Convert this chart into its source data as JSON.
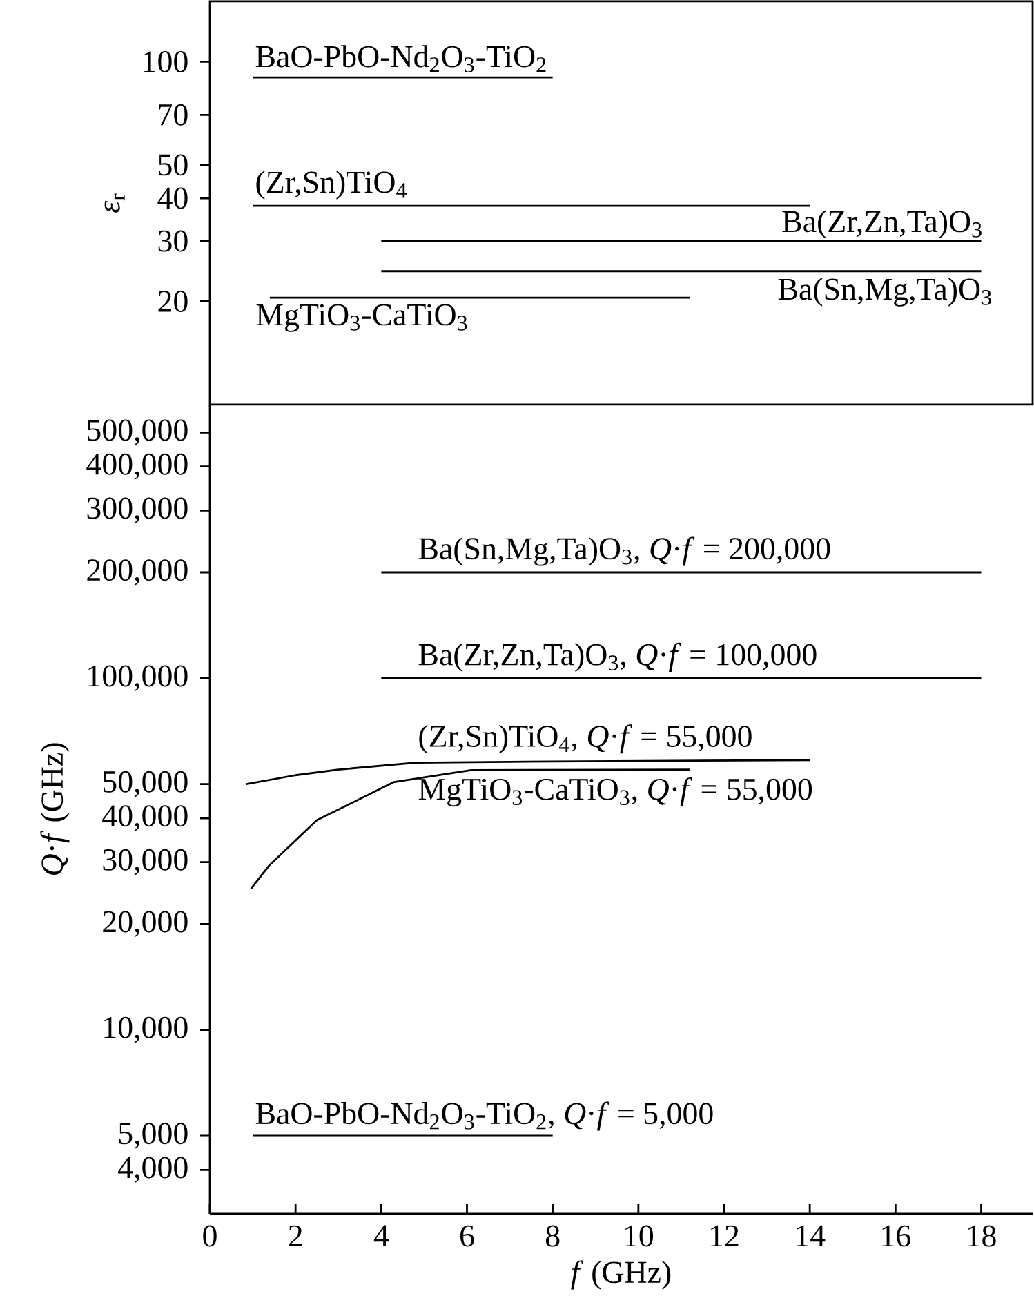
{
  "chart_data": [
    {
      "type": "line",
      "ylabel": "*ε*$_{r}$",
      "log": "y",
      "xlim": [
        0,
        19.2
      ],
      "ylim": [
        10,
        150
      ],
      "yticks": [
        20,
        30,
        40,
        50,
        70,
        100
      ],
      "tick_labels": "y",
      "series": [
        {
          "color": "#000000",
          "x": [
            1,
            8
          ],
          "values": [
            90,
            90
          ]
        },
        {
          "color": "#000000",
          "x": [
            1,
            14
          ],
          "values": [
            38,
            38
          ]
        },
        {
          "color": "#000000",
          "x": [
            4,
            18
          ],
          "values": [
            30,
            30
          ]
        },
        {
          "color": "#000000",
          "x": [
            4,
            18
          ],
          "values": [
            24.5,
            24.5
          ]
        },
        {
          "color": "#000000",
          "x": [
            1.4,
            11.2
          ],
          "values": [
            20.5,
            20.5
          ]
        }
      ],
      "annotations": [
        {
          "text": "BaO-PbO-Nd$_{2}$O$_{3}$-TiO$_{2}$",
          "x": 1,
          "y": 90
        },
        {
          "text": "(Zr,Sn)TiO$_{4}$",
          "x": 1,
          "y": 38
        },
        {
          "text": "Ba(Zr,Zn,Ta)O$_{3}$",
          "x": 18,
          "y": 30
        },
        {
          "text": "Ba(Sn,Mg,Ta)O$_{3}$",
          "x": 18,
          "y": 24.5
        },
        {
          "text": "MgTiO$_{3}$-CaTiO$_{3}$",
          "x": 1.4,
          "y": 20.5
        }
      ]
    },
    {
      "type": "line",
      "xlabel": "*f* (GHz)",
      "ylabel": "*Q*·*f* (GHz)",
      "log": "y",
      "xlim": [
        0,
        19.2
      ],
      "ylim": [
        3000,
        600000
      ],
      "xticks": [
        0,
        2,
        4,
        6,
        8,
        10,
        12,
        14,
        16,
        18
      ],
      "yticks": [
        {
          "value": 4000,
          "label": "4,000"
        },
        {
          "value": 5000,
          "label": "5,000"
        },
        {
          "value": 10000,
          "label": "10,000"
        },
        {
          "value": 20000,
          "label": "20,000"
        },
        {
          "value": 30000,
          "label": "30,000"
        },
        {
          "value": 40000,
          "label": "40,000"
        },
        {
          "value": 50000,
          "label": "50,000"
        },
        {
          "value": 100000,
          "label": "100,000"
        },
        {
          "value": 200000,
          "label": "200,000"
        },
        {
          "value": 300000,
          "label": "300,000"
        },
        {
          "value": 400000,
          "label": "400,000"
        },
        {
          "value": 500000,
          "label": "500,000"
        }
      ],
      "series": [
        {
          "color": "#000000",
          "x": [
            4,
            18
          ],
          "values": [
            200000,
            200000
          ]
        },
        {
          "color": "#000000",
          "x": [
            4,
            18
          ],
          "values": [
            100000,
            100000
          ]
        },
        {
          "color": "#000000",
          "x": [
            0.85,
            2,
            3,
            4.8,
            8,
            14
          ],
          "values": [
            50000,
            53000,
            55000,
            57500,
            58000,
            58500
          ]
        },
        {
          "color": "#000000",
          "x": [
            0.96,
            1.38,
            2.5,
            4.3,
            6.1,
            11.2
          ],
          "values": [
            25200,
            29300,
            39500,
            50700,
            54800,
            55000
          ]
        },
        {
          "color": "#000000",
          "x": [
            1,
            8
          ],
          "values": [
            5000,
            5000
          ]
        }
      ],
      "annotations": [
        {
          "text": "Ba(Sn,Mg,Ta)O$_{3}$, *Q*·*f* = 200,000",
          "x": 4.8,
          "y": 200000
        },
        {
          "text": "Ba(Zr,Zn,Ta)O$_{3}$, *Q*·*f* = 100,000",
          "x": 4.8,
          "y": 100000
        },
        {
          "text": "(Zr,Sn)TiO$_{4}$, *Q*·*f* = 55,000",
          "x": 4.8,
          "y": 57500
        },
        "MgTiO$_{3}$-CaTiO$_{3}$, *Q*·*f* = 55,000",
        "BaO-PbO-Nd$_{2}$O$_{3}$-TiO$_{2}$, *Q*·*f* = 5,000"
      ]
    }
  ]
}
